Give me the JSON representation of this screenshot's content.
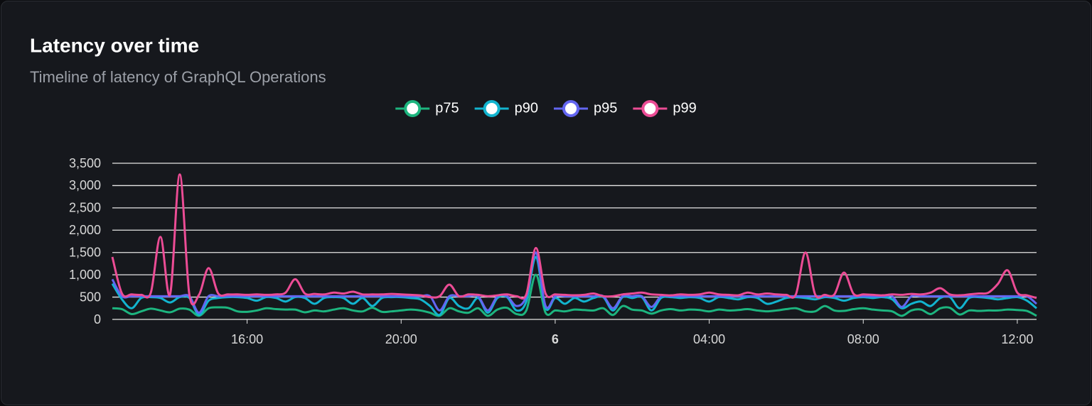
{
  "chart_data": {
    "type": "line",
    "title": "Latency over time",
    "subtitle": "Timeline of latency of GraphQL Operations",
    "x": [
      12.5,
      12.75,
      13,
      13.25,
      13.5,
      13.75,
      14,
      14.25,
      14.5,
      14.75,
      15,
      15.25,
      15.5,
      15.75,
      16,
      16.25,
      16.5,
      16.75,
      17,
      17.25,
      17.5,
      17.75,
      18,
      18.25,
      18.5,
      18.75,
      19,
      19.25,
      19.5,
      19.75,
      20,
      20.25,
      20.5,
      20.75,
      21,
      21.25,
      21.5,
      21.75,
      22,
      22.25,
      22.5,
      22.75,
      23,
      23.25,
      23.5,
      23.75,
      24,
      24.25,
      24.5,
      24.75,
      25,
      25.25,
      25.5,
      25.75,
      26,
      26.25,
      26.5,
      26.75,
      27,
      27.25,
      27.5,
      27.75,
      28,
      28.25,
      28.5,
      28.75,
      29,
      29.25,
      29.5,
      29.75,
      30,
      30.25,
      30.5,
      30.75,
      31,
      31.25,
      31.5,
      31.75,
      32,
      32.25,
      32.5,
      32.75,
      33,
      33.25,
      33.5,
      33.75,
      34,
      34.25,
      34.5,
      34.75,
      35,
      35.25,
      35.5,
      35.75,
      36,
      36.25,
      36.5
    ],
    "xlim": [
      12.5,
      36.5
    ],
    "xticks": [
      {
        "value": 16,
        "label": "16:00"
      },
      {
        "value": 20,
        "label": "20:00"
      },
      {
        "value": 24,
        "label": "6"
      },
      {
        "value": 28,
        "label": "04:00"
      },
      {
        "value": 32,
        "label": "08:00"
      },
      {
        "value": 36,
        "label": "12:00"
      }
    ],
    "ylim": [
      0,
      3500
    ],
    "yticks": [
      0,
      500,
      {
        "value": 1000,
        "label": "1,000"
      },
      {
        "value": 1500,
        "label": "1,500"
      },
      {
        "value": 2000,
        "label": "2,000"
      },
      {
        "value": 2500,
        "label": "2,500"
      },
      {
        "value": 3000,
        "label": "3,000"
      },
      {
        "value": 3500,
        "label": "3,500"
      }
    ],
    "grid": true,
    "legend": "top",
    "series": [
      {
        "name": "p75",
        "color": "#1db57f",
        "values": [
          250,
          230,
          120,
          180,
          240,
          200,
          160,
          240,
          220,
          80,
          250,
          270,
          260,
          180,
          170,
          200,
          250,
          230,
          220,
          220,
          160,
          200,
          180,
          220,
          250,
          200,
          180,
          260,
          170,
          180,
          200,
          220,
          200,
          150,
          80,
          250,
          180,
          150,
          250,
          80,
          220,
          260,
          120,
          200,
          1000,
          150,
          200,
          180,
          220,
          210,
          200,
          250,
          100,
          300,
          220,
          200,
          130,
          200,
          230,
          200,
          220,
          210,
          180,
          220,
          200,
          210,
          230,
          200,
          180,
          200,
          230,
          250,
          180,
          180,
          300,
          200,
          190,
          230,
          250,
          220,
          200,
          180,
          80,
          200,
          220,
          120,
          250,
          260,
          110,
          200,
          190,
          200,
          200,
          220,
          210,
          190,
          80
        ]
      },
      {
        "name": "p90",
        "color": "#12b4cf",
        "values": [
          800,
          450,
          250,
          480,
          500,
          480,
          380,
          500,
          480,
          100,
          420,
          480,
          500,
          500,
          480,
          420,
          500,
          480,
          400,
          500,
          480,
          350,
          480,
          500,
          480,
          350,
          480,
          300,
          480,
          500,
          500,
          480,
          450,
          300,
          100,
          480,
          300,
          250,
          480,
          150,
          480,
          500,
          200,
          400,
          1400,
          250,
          480,
          350,
          480,
          400,
          480,
          500,
          200,
          500,
          480,
          500,
          200,
          480,
          500,
          480,
          500,
          480,
          400,
          500,
          480,
          450,
          500,
          480,
          350,
          400,
          480,
          500,
          480,
          450,
          500,
          480,
          420,
          480,
          500,
          480,
          500,
          450,
          250,
          350,
          400,
          300,
          480,
          500,
          250,
          480,
          500,
          480,
          450,
          480,
          500,
          420,
          250
        ]
      },
      {
        "name": "p95",
        "color": "#6366f1",
        "values": [
          900,
          520,
          520,
          520,
          520,
          520,
          520,
          520,
          520,
          150,
          520,
          520,
          520,
          520,
          520,
          520,
          520,
          520,
          520,
          520,
          520,
          520,
          520,
          520,
          520,
          520,
          520,
          520,
          520,
          520,
          520,
          520,
          520,
          520,
          200,
          520,
          520,
          520,
          520,
          200,
          520,
          520,
          300,
          520,
          1500,
          300,
          520,
          520,
          520,
          520,
          520,
          520,
          250,
          520,
          520,
          520,
          280,
          520,
          520,
          520,
          520,
          520,
          520,
          520,
          520,
          520,
          520,
          520,
          520,
          520,
          520,
          520,
          520,
          520,
          520,
          520,
          520,
          520,
          520,
          520,
          520,
          520,
          280,
          520,
          520,
          520,
          520,
          520,
          520,
          520,
          520,
          520,
          520,
          520,
          520,
          520,
          350
        ]
      },
      {
        "name": "p99",
        "color": "#ec4c95",
        "values": [
          1400,
          580,
          560,
          550,
          600,
          1850,
          560,
          3250,
          560,
          550,
          1150,
          580,
          560,
          560,
          550,
          560,
          550,
          560,
          600,
          900,
          580,
          570,
          560,
          600,
          580,
          620,
          560,
          560,
          560,
          570,
          560,
          550,
          540,
          500,
          520,
          780,
          520,
          560,
          550,
          520,
          540,
          560,
          520,
          560,
          1600,
          580,
          560,
          550,
          540,
          550,
          580,
          520,
          520,
          560,
          580,
          600,
          560,
          550,
          540,
          560,
          550,
          560,
          600,
          560,
          550,
          540,
          600,
          560,
          580,
          560,
          550,
          560,
          1500,
          560,
          550,
          560,
          1050,
          570,
          560,
          550,
          540,
          560,
          550,
          570,
          560,
          600,
          700,
          560,
          540,
          560,
          580,
          600,
          800,
          1100,
          600,
          540,
          480
        ]
      }
    ]
  }
}
